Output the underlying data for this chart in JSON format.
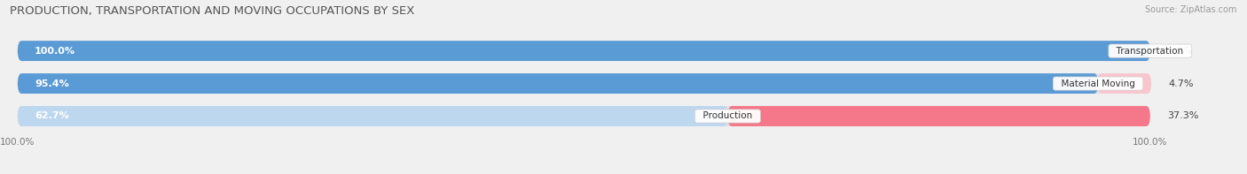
{
  "title": "PRODUCTION, TRANSPORTATION AND MOVING OCCUPATIONS BY SEX",
  "source": "Source: ZipAtlas.com",
  "categories": [
    "Transportation",
    "Material Moving",
    "Production"
  ],
  "male_pct": [
    100.0,
    95.4,
    62.7
  ],
  "female_pct": [
    0.0,
    4.7,
    37.3
  ],
  "male_color_dark": "#5b9bd5",
  "male_color_light": "#bdd7ee",
  "female_color_dark": "#f4778a",
  "female_color_light": "#f9c6ce",
  "bar_height": 0.62,
  "bg_color": "#f0f0f0",
  "bar_bg_color": "#e0e0e8",
  "title_fontsize": 9.5,
  "label_fontsize": 8.0,
  "tick_fontsize": 7.5,
  "source_fontsize": 7.0
}
